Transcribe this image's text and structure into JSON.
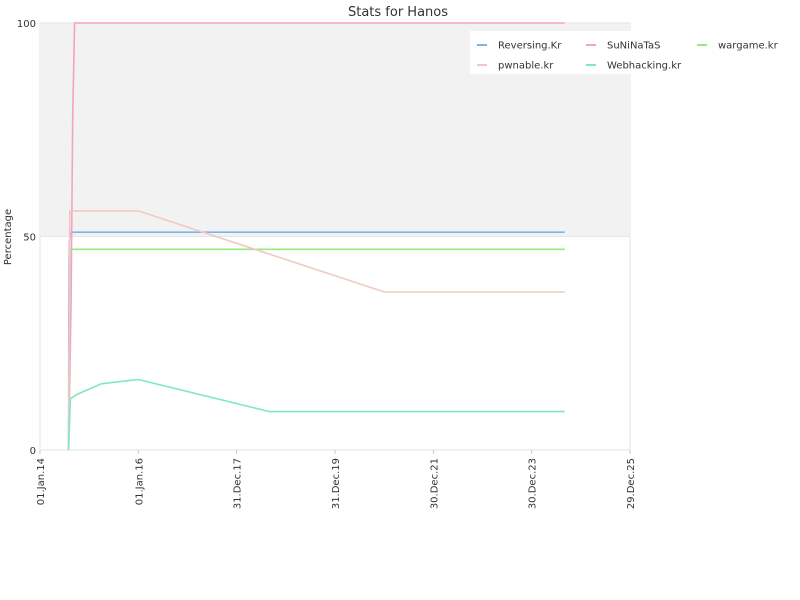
{
  "chart_data": {
    "type": "line",
    "title": "Stats for Hanos",
    "xlabel": "",
    "ylabel": "Percentage",
    "ylim": [
      0,
      100
    ],
    "xlim": [
      "2014-01-01",
      "2025-12-29"
    ],
    "x_ticks": [
      "01.Jan.14",
      "01.Jan.16",
      "31.Dec.17",
      "31.Dec.19",
      "30.Dec.21",
      "30.Dec.23",
      "29.Dec.25"
    ],
    "y_ticks": [
      0,
      50,
      100
    ],
    "grid": true,
    "legend_position": "top-right",
    "series": [
      {
        "name": "Reversing.Kr",
        "color": "#7cb5ec",
        "points": [
          [
            "2014-08-01",
            0
          ],
          [
            "2014-08-03",
            30
          ],
          [
            "2014-08-05",
            44
          ],
          [
            "2014-08-08",
            49
          ],
          [
            "2014-08-15",
            51
          ],
          [
            "2015-01-01",
            51
          ],
          [
            "2024-09-01",
            51
          ]
        ]
      },
      {
        "name": "SuNiNaTaS",
        "color": "#f7a1c4",
        "points": [
          [
            "2014-08-01",
            0
          ],
          [
            "2014-08-20",
            35
          ],
          [
            "2014-09-01",
            78
          ],
          [
            "2014-09-15",
            100
          ],
          [
            "2024-09-01",
            100
          ]
        ]
      },
      {
        "name": "wargame.kr",
        "color": "#90ed7d",
        "points": [
          [
            "2014-08-01",
            0
          ],
          [
            "2014-08-10",
            47
          ],
          [
            "2024-09-01",
            47
          ]
        ]
      },
      {
        "name": "pwnable.kr",
        "color": "#f4c7c3",
        "points": [
          [
            "2014-08-01",
            0
          ],
          [
            "2014-08-10",
            56
          ],
          [
            "2016-01-01",
            56
          ],
          [
            "2021-01-01",
            37
          ],
          [
            "2024-09-01",
            37
          ]
        ]
      },
      {
        "name": "Webhacking.kr",
        "color": "#7ee8c4",
        "points": [
          [
            "2014-08-01",
            0
          ],
          [
            "2014-08-15",
            12
          ],
          [
            "2014-10-01",
            13
          ],
          [
            "2015-04-01",
            15.5
          ],
          [
            "2016-01-01",
            16.5
          ],
          [
            "2018-09-01",
            9
          ],
          [
            "2024-09-01",
            9
          ]
        ]
      }
    ],
    "legend_order": [
      "Reversing.Kr",
      "SuNiNaTaS",
      "wargame.kr",
      "pwnable.kr",
      "Webhacking.kr"
    ],
    "band_color": "#f2f2f2"
  }
}
